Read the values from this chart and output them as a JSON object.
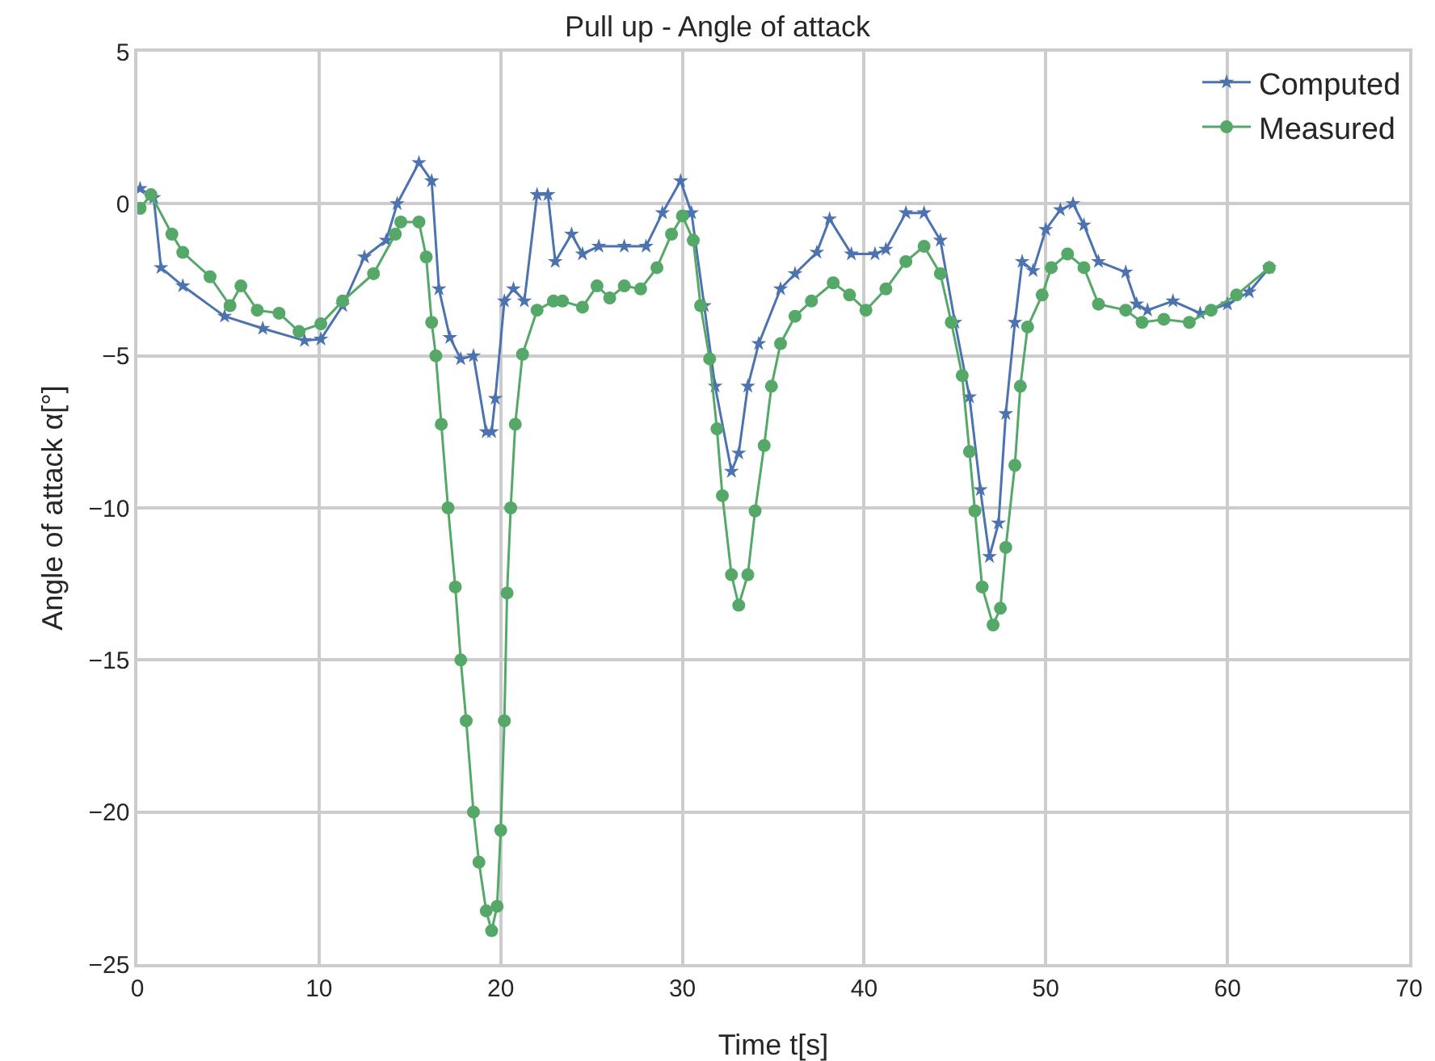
{
  "chart_data": {
    "type": "line",
    "title": "Pull up - Angle of attack",
    "xlabel": "Time t[s]",
    "ylabel": "Angle of attack α[°]",
    "xlim": [
      0,
      70
    ],
    "xticks": [
      0,
      10,
      20,
      30,
      40,
      50,
      60,
      70
    ],
    "ylim": [
      -25,
      5
    ],
    "yticks": [
      -25,
      -20,
      -15,
      -10,
      -5,
      0,
      5
    ],
    "grid": true,
    "legend": "top right",
    "line_style": "solid",
    "series": [
      {
        "name": "Computed",
        "color": "#4c72b0",
        "marker": "star",
        "x": [
          0.15,
          0.9,
          1.3,
          2.5,
          4.8,
          6.9,
          9.2,
          10.1,
          11.3,
          12.5,
          13.7,
          14.3,
          15.5,
          16.2,
          16.6,
          17.2,
          17.8,
          18.5,
          19.2,
          19.5,
          19.7,
          20.2,
          20.7,
          21.3,
          22.0,
          22.6,
          23.0,
          23.9,
          24.5,
          25.4,
          26.8,
          28.0,
          28.9,
          29.9,
          30.5,
          31.2,
          31.8,
          32.7,
          33.1,
          33.6,
          34.2,
          35.4,
          36.2,
          37.4,
          38.1,
          39.3,
          40.6,
          41.2,
          42.3,
          43.3,
          44.2,
          45.0,
          45.8,
          46.4,
          46.9,
          47.4,
          47.8,
          48.3,
          48.7,
          49.3,
          50.0,
          50.8,
          51.5,
          52.1,
          52.9,
          54.4,
          55.0,
          55.6,
          57.0,
          58.5,
          60.0,
          61.2,
          62.3
        ],
        "values": [
          0.5,
          0.2,
          -2.1,
          -2.7,
          -3.7,
          -4.1,
          -4.5,
          -4.45,
          -3.35,
          -1.75,
          -1.2,
          0.0,
          1.35,
          0.75,
          -2.8,
          -4.4,
          -5.1,
          -5.0,
          -7.5,
          -7.5,
          -6.4,
          -3.2,
          -2.8,
          -3.2,
          0.3,
          0.3,
          -1.9,
          -1.0,
          -1.65,
          -1.4,
          -1.4,
          -1.4,
          -0.3,
          0.75,
          -0.3,
          -3.35,
          -6.0,
          -8.8,
          -8.2,
          -6.0,
          -4.6,
          -2.8,
          -2.3,
          -1.6,
          -0.5,
          -1.65,
          -1.65,
          -1.5,
          -0.3,
          -0.3,
          -1.2,
          -3.9,
          -6.35,
          -9.4,
          -11.6,
          -10.5,
          -6.9,
          -3.9,
          -1.9,
          -2.2,
          -0.85,
          -0.2,
          0.0,
          -0.7,
          -1.9,
          -2.25,
          -3.3,
          -3.5,
          -3.2,
          -3.6,
          -3.3,
          -2.9,
          -2.1
        ]
      },
      {
        "name": "Measured",
        "color": "#55a868",
        "marker": "circle",
        "x": [
          0.15,
          0.75,
          1.9,
          2.5,
          4.0,
          5.1,
          5.7,
          6.6,
          7.8,
          8.9,
          10.1,
          11.3,
          13.0,
          14.2,
          14.5,
          15.5,
          15.9,
          16.2,
          16.43,
          16.73,
          17.1,
          17.5,
          17.8,
          18.1,
          18.5,
          18.8,
          19.2,
          19.5,
          19.8,
          20.0,
          20.2,
          20.35,
          20.55,
          20.8,
          21.2,
          22.0,
          22.9,
          23.4,
          24.5,
          25.3,
          26.0,
          26.8,
          27.7,
          28.6,
          29.4,
          30.0,
          30.6,
          31.0,
          31.5,
          31.9,
          32.2,
          32.7,
          33.1,
          33.6,
          34.0,
          34.5,
          34.9,
          35.4,
          36.2,
          37.1,
          38.3,
          39.2,
          40.1,
          41.2,
          42.3,
          43.3,
          44.2,
          44.8,
          45.4,
          45.8,
          46.1,
          46.5,
          47.1,
          47.5,
          47.8,
          48.3,
          48.6,
          49.0,
          49.8,
          50.3,
          51.2,
          52.1,
          52.9,
          54.4,
          55.3,
          56.5,
          57.9,
          59.1,
          60.5,
          62.3
        ],
        "values": [
          -0.15,
          0.3,
          -1.0,
          -1.6,
          -2.4,
          -3.35,
          -2.7,
          -3.5,
          -3.6,
          -4.2,
          -3.95,
          -3.2,
          -2.3,
          -1.0,
          -0.6,
          -0.6,
          -1.75,
          -3.9,
          -5.0,
          -7.25,
          -10.0,
          -12.6,
          -15.0,
          -17.0,
          -20.0,
          -21.65,
          -23.25,
          -23.9,
          -23.1,
          -20.6,
          -17.0,
          -12.8,
          -10.0,
          -7.25,
          -4.95,
          -3.5,
          -3.2,
          -3.2,
          -3.4,
          -2.7,
          -3.1,
          -2.7,
          -2.8,
          -2.1,
          -1.0,
          -0.4,
          -1.2,
          -3.35,
          -5.1,
          -7.4,
          -9.6,
          -12.2,
          -13.2,
          -12.2,
          -10.1,
          -7.95,
          -6.0,
          -4.6,
          -3.7,
          -3.2,
          -2.6,
          -3.0,
          -3.5,
          -2.8,
          -1.9,
          -1.4,
          -2.3,
          -3.9,
          -5.65,
          -8.15,
          -10.1,
          -12.6,
          -13.85,
          -13.3,
          -11.3,
          -8.6,
          -6.0,
          -4.05,
          -3.0,
          -2.1,
          -1.65,
          -2.1,
          -3.3,
          -3.5,
          -3.9,
          -3.8,
          -3.9,
          -3.5,
          -3.0,
          -2.1
        ]
      }
    ]
  }
}
